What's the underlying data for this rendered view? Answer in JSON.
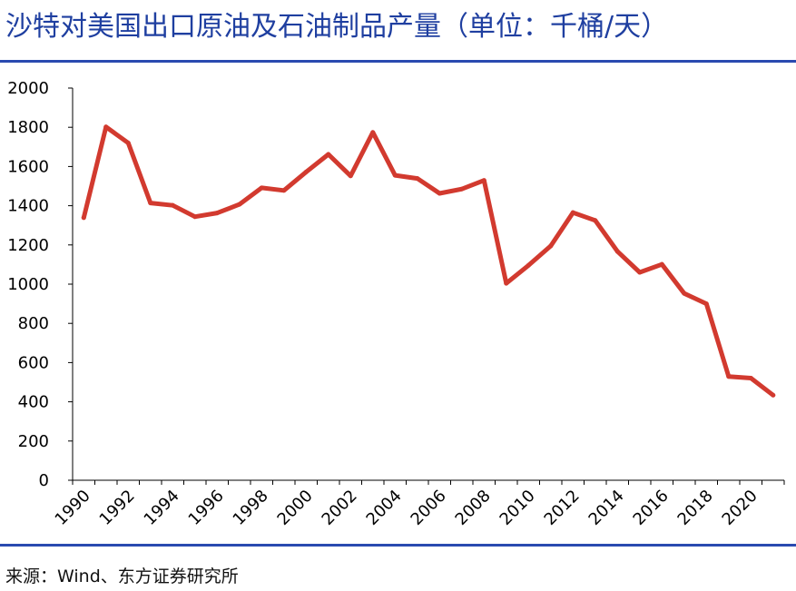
{
  "header": {
    "title": "沙特对美国出口原油及石油制品产量（单位：千桶/天）"
  },
  "footer": {
    "source": "来源：Wind、东方证券研究所"
  },
  "chart_data": {
    "type": "line",
    "title": "沙特对美国出口原油及石油制品产量（单位：千桶/天）",
    "xlabel": "",
    "ylabel": "",
    "ylim": [
      0,
      2000
    ],
    "yticks": [
      "0",
      "200",
      "400",
      "600",
      "800",
      "1000",
      "1200",
      "1400",
      "1600",
      "1800",
      "2000"
    ],
    "xticks": [
      "1990",
      "1992",
      "1994",
      "1996",
      "1998",
      "2000",
      "2002",
      "2004",
      "2006",
      "2008",
      "2010",
      "2012",
      "2014",
      "2016",
      "2018",
      "2020"
    ],
    "grid": false,
    "legend": "none",
    "line_color": "#d23a2f",
    "x": [
      1990,
      1991,
      1992,
      1993,
      1994,
      1995,
      1996,
      1997,
      1998,
      1999,
      2000,
      2001,
      2002,
      2003,
      2004,
      2005,
      2006,
      2007,
      2008,
      2009,
      2010,
      2011,
      2012,
      2013,
      2014,
      2015,
      2016,
      2017,
      2018,
      2019,
      2020,
      2021
    ],
    "values": [
      1339,
      1802,
      1720,
      1414,
      1402,
      1344,
      1363,
      1407,
      1491,
      1478,
      1572,
      1662,
      1552,
      1774,
      1555,
      1539,
      1463,
      1485,
      1529,
      1004,
      1096,
      1195,
      1365,
      1325,
      1167,
      1060,
      1101,
      953,
      900,
      529,
      521,
      434
    ]
  }
}
